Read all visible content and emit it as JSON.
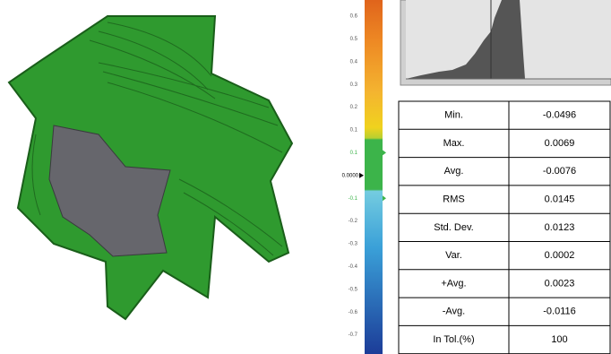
{
  "color_scale": {
    "labels": [
      "0.6",
      "0.5",
      "0.4",
      "0.3",
      "0.2",
      "0.1",
      "0.1",
      "0.0000",
      "-0.1",
      "-0.2",
      "-0.3",
      "-0.4",
      "-0.5",
      "-0.6",
      "-0.7"
    ]
  },
  "table": {
    "rows": [
      [
        "Min.",
        "-0.0496"
      ],
      [
        "Max.",
        "0.0069"
      ],
      [
        "Avg.",
        "-0.0076"
      ],
      [
        "RMS",
        "0.0145"
      ],
      [
        "Std. Dev.",
        "0.0123"
      ],
      [
        "Var.",
        "0.0002"
      ],
      [
        "+Avg.",
        "0.0023"
      ],
      [
        "-Avg.",
        "-0.0116"
      ],
      [
        "In Tol.(%)",
        "100"
      ]
    ]
  }
}
